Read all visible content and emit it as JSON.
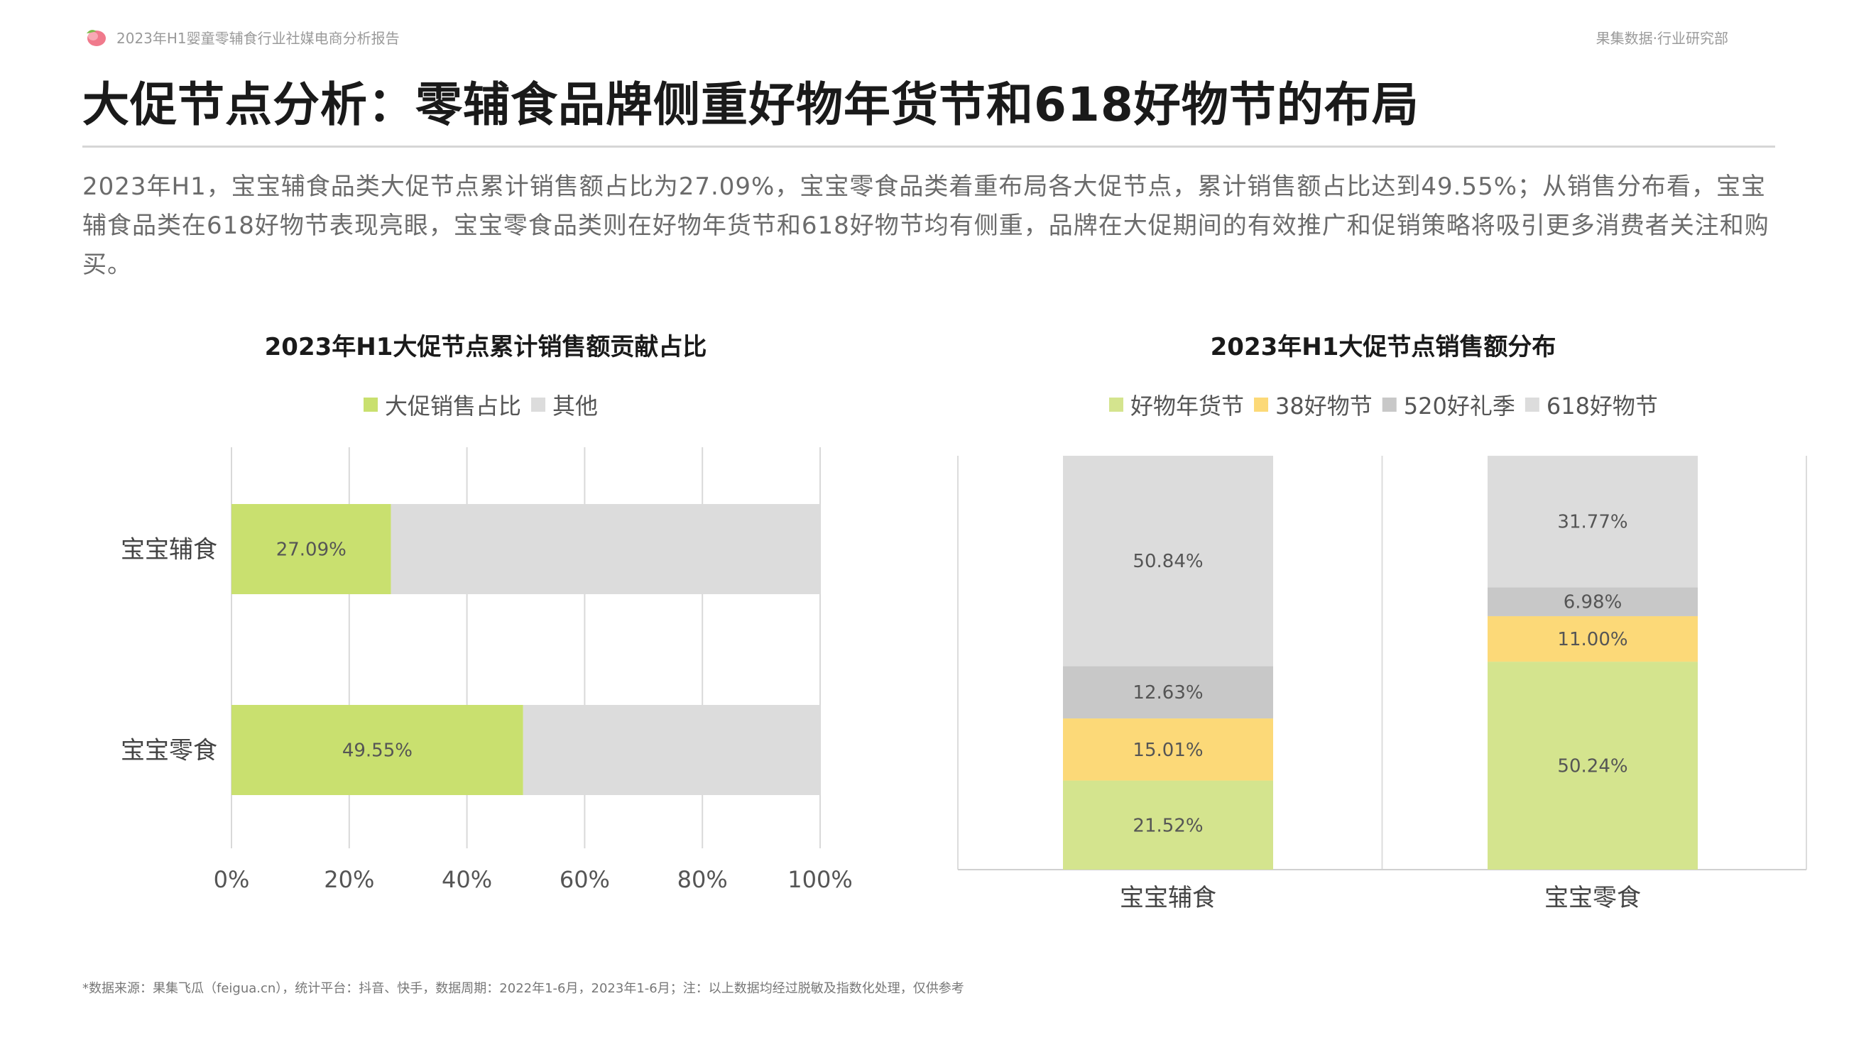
{
  "header": {
    "report_name": "2023年H1婴童零辅食行业社媒电商分析报告",
    "org": "果集数据·行业研究部",
    "logo_icon": "peach-logo-icon"
  },
  "page_title": "大促节点分析：零辅食品牌侧重好物年货节和618好物节的布局",
  "summary": "2023年H1，宝宝辅食品类大促节点累计销售额占比为27.09%，宝宝零食品类着重布局各大促节点，累计销售额占比达到49.55%；从销售分布看，宝宝辅食品类在618好物节表现亮眼，宝宝零食品类则在好物年货节和618好物节均有侧重，品牌在大促期间的有效推广和促销策略将吸引更多消费者关注和购买。",
  "footnote": "*数据来源：果集飞瓜（feigua.cn），统计平台：抖音、快手，数据周期：2022年1-6月，2023年1-6月；注：以上数据均经过脱敏及指数化处理，仅供参考",
  "chart_data": [
    {
      "type": "bar",
      "orientation": "horizontal",
      "stacked": true,
      "title": "2023年H1大促节点累计销售额贡献占比",
      "categories": [
        "宝宝辅食",
        "宝宝零食"
      ],
      "series": [
        {
          "name": "大促销售占比",
          "values": [
            27.09,
            49.55
          ],
          "labels": [
            "27.09%",
            "49.55%"
          ],
          "color": "#c9e06f"
        },
        {
          "name": "其他",
          "values": [
            72.91,
            50.45
          ],
          "color": "#dcdcdc"
        }
      ],
      "xlim": [
        0,
        100
      ],
      "xticks": [
        "0%",
        "20%",
        "40%",
        "60%",
        "80%",
        "100%"
      ],
      "grid": true,
      "legend": "top"
    },
    {
      "type": "bar",
      "orientation": "vertical",
      "stacked": true,
      "title": "2023年H1大促节点销售额分布",
      "categories": [
        "宝宝辅食",
        "宝宝零食"
      ],
      "series": [
        {
          "name": "好物年货节",
          "values": [
            21.52,
            50.24
          ],
          "labels": [
            "21.52%",
            "50.24%"
          ],
          "color": "#d4e48e"
        },
        {
          "name": "38好物节",
          "values": [
            15.01,
            11.0
          ],
          "labels": [
            "15.01%",
            "11.00%"
          ],
          "color": "#fcd978"
        },
        {
          "name": "520好礼季",
          "values": [
            12.63,
            6.98
          ],
          "labels": [
            "12.63%",
            "6.98%"
          ],
          "color": "#c8c8c8"
        },
        {
          "name": "618好物节",
          "values": [
            50.84,
            31.77
          ],
          "labels": [
            "50.84%",
            "31.77%"
          ],
          "color": "#dcdcdc"
        }
      ],
      "ylim": [
        0,
        100
      ],
      "legend": "top"
    }
  ]
}
